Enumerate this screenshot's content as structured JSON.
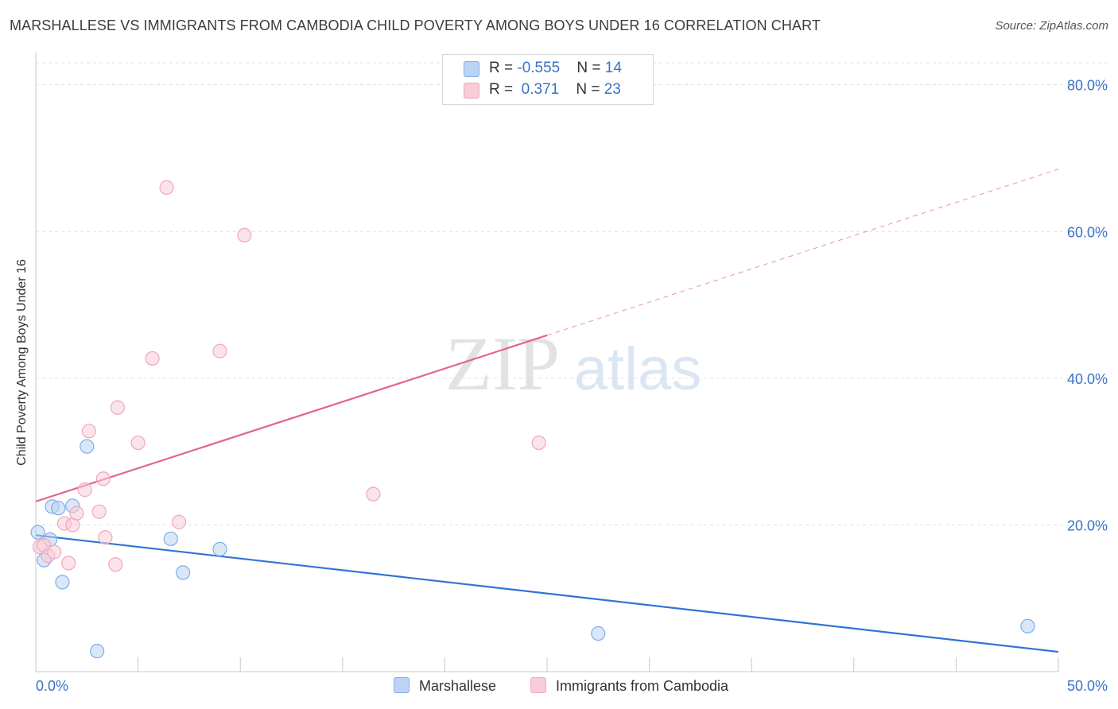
{
  "header": {
    "title": "MARSHALLESE VS IMMIGRANTS FROM CAMBODIA CHILD POVERTY AMONG BOYS UNDER 16 CORRELATION CHART",
    "source": "Source: ZipAtlas.com"
  },
  "watermark": {
    "zip": "ZIP",
    "atlas": "atlas"
  },
  "legend": {
    "rows": [
      {
        "r_label": "R = ",
        "r_value": "-0.555",
        "n_label": "N = ",
        "n_value": "14"
      },
      {
        "r_label": "R = ",
        "r_value": " 0.371",
        "n_label": "N = ",
        "n_value": "23"
      }
    ]
  },
  "chart_data": {
    "type": "scatter",
    "title": "MARSHALLESE VS IMMIGRANTS FROM CAMBODIA CHILD POVERTY AMONG BOYS UNDER 16 CORRELATION CHART",
    "xlabel": "",
    "ylabel": "Child Poverty Among Boys Under 16",
    "xlim": [
      0,
      50
    ],
    "ylim": [
      0,
      83
    ],
    "x_tick_labels": [
      "0.0%",
      "50.0%"
    ],
    "y_ticks": [
      20,
      40,
      60,
      80
    ],
    "y_tick_labels": [
      "20.0%",
      "40.0%",
      "60.0%",
      "80.0%"
    ],
    "legend_position": "top-center",
    "series": [
      {
        "name": "Marshallese",
        "color": "#7eaee8",
        "fill": "#bcd4f3",
        "line_color": "#3074d4",
        "r": "-0.555",
        "n": "14",
        "points": [
          [
            0.1,
            19.0
          ],
          [
            0.4,
            15.2
          ],
          [
            0.7,
            18.0
          ],
          [
            0.8,
            22.5
          ],
          [
            1.1,
            22.3
          ],
          [
            1.3,
            12.2
          ],
          [
            1.8,
            22.6
          ],
          [
            2.5,
            30.7
          ],
          [
            3.0,
            2.8
          ],
          [
            6.6,
            18.1
          ],
          [
            7.2,
            13.5
          ],
          [
            9.0,
            16.7
          ],
          [
            27.5,
            5.2
          ],
          [
            48.5,
            6.2
          ]
        ],
        "trend": {
          "x0": 0,
          "y0": 18.6,
          "x1": 50,
          "y1": 2.7,
          "dash_from": null
        }
      },
      {
        "name": "Immigrants from Cambodia",
        "color": "#f2a6bc",
        "fill": "#f8ccd9",
        "line_color": "#e0668c",
        "r": "0.371",
        "n": "23",
        "points": [
          [
            0.2,
            17.0
          ],
          [
            0.4,
            17.2
          ],
          [
            0.6,
            15.8
          ],
          [
            0.9,
            16.3
          ],
          [
            1.4,
            20.2
          ],
          [
            1.6,
            14.8
          ],
          [
            1.8,
            20.0
          ],
          [
            2.0,
            21.6
          ],
          [
            2.4,
            24.8
          ],
          [
            2.6,
            32.8
          ],
          [
            3.1,
            21.8
          ],
          [
            3.3,
            26.3
          ],
          [
            3.4,
            18.3
          ],
          [
            3.9,
            14.6
          ],
          [
            4.0,
            36.0
          ],
          [
            5.0,
            31.2
          ],
          [
            5.7,
            42.7
          ],
          [
            6.4,
            66.0
          ],
          [
            7.0,
            20.4
          ],
          [
            9.0,
            43.7
          ],
          [
            10.2,
            59.5
          ],
          [
            16.5,
            24.2
          ],
          [
            24.6,
            31.2
          ]
        ],
        "trend": {
          "x0": 0,
          "y0": 23.2,
          "x1": 50,
          "y1": 68.5,
          "dash_from": 25
        }
      }
    ]
  }
}
